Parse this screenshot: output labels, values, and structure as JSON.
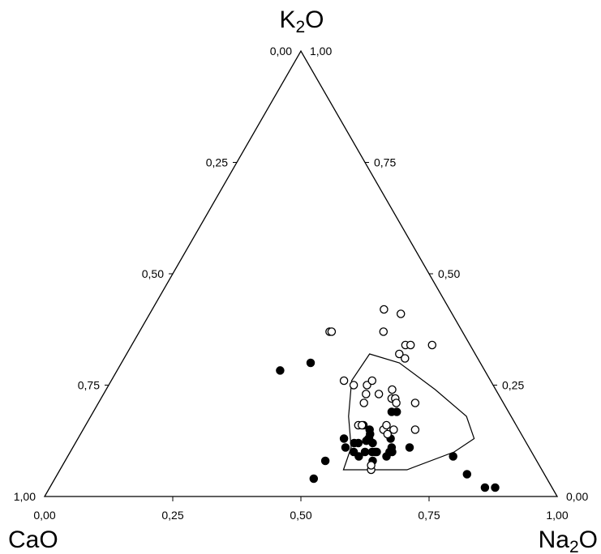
{
  "chart_data": {
    "type": "scatter",
    "plot_kind": "ternary",
    "title": "",
    "vertices": {
      "top": {
        "label": "K",
        "sub": "2",
        "tail": "O"
      },
      "left": {
        "label": "CaO",
        "sub": "",
        "tail": ""
      },
      "right": {
        "label": "Na",
        "sub": "2",
        "tail": "O"
      }
    },
    "component_order": [
      "CaO",
      "Na2O",
      "K2O"
    ],
    "tick_labels": {
      "bottom": [
        "0,00",
        "0,25",
        "0,50",
        "0,75",
        "1,00"
      ],
      "left": [
        "0,00",
        "0,25",
        "0,50",
        "0,75",
        "1,00"
      ],
      "right": [
        "1,00",
        "0,75",
        "0,50",
        "0,25",
        "0,00"
      ]
    },
    "grid": false,
    "legend": "none",
    "series": [
      {
        "marker": "filled-circle",
        "color": "#000000",
        "points": [
          {
            "CaO": 0.331,
            "Na2O": 0.369,
            "K2O": 0.3
          },
          {
            "CaO": 0.358,
            "Na2O": 0.532,
            "K2O": 0.11
          },
          {
            "CaO": 0.351,
            "Na2O": 0.519,
            "K2O": 0.13
          },
          {
            "CaO": 0.328,
            "Na2O": 0.552,
            "K2O": 0.12
          },
          {
            "CaO": 0.336,
            "Na2O": 0.544,
            "K2O": 0.12
          },
          {
            "CaO": 0.347,
            "Na2O": 0.553,
            "K2O": 0.1
          },
          {
            "CaO": 0.342,
            "Na2O": 0.568,
            "K2O": 0.09
          },
          {
            "CaO": 0.325,
            "Na2O": 0.575,
            "K2O": 0.1
          },
          {
            "CaO": 0.32,
            "Na2O": 0.6,
            "K2O": 0.08
          },
          {
            "CaO": 0.302,
            "Na2O": 0.598,
            "K2O": 0.1
          },
          {
            "CaO": 0.305,
            "Na2O": 0.595,
            "K2O": 0.1
          },
          {
            "CaO": 0.311,
            "Na2O": 0.589,
            "K2O": 0.1
          },
          {
            "CaO": 0.303,
            "Na2O": 0.567,
            "K2O": 0.13
          },
          {
            "CaO": 0.31,
            "Na2O": 0.565,
            "K2O": 0.125
          },
          {
            "CaO": 0.295,
            "Na2O": 0.565,
            "K2O": 0.14
          },
          {
            "CaO": 0.291,
            "Na2O": 0.559,
            "K2O": 0.15
          },
          {
            "CaO": 0.3,
            "Na2O": 0.58,
            "K2O": 0.12
          },
          {
            "CaO": 0.298,
            "Na2O": 0.542,
            "K2O": 0.16
          },
          {
            "CaO": 0.302,
            "Na2O": 0.568,
            "K2O": 0.13
          },
          {
            "CaO": 0.288,
            "Na2O": 0.622,
            "K2O": 0.09
          },
          {
            "CaO": 0.272,
            "Na2O": 0.628,
            "K2O": 0.1
          },
          {
            "CaO": 0.26,
            "Na2O": 0.61,
            "K2O": 0.13
          },
          {
            "CaO": 0.268,
            "Na2O": 0.622,
            "K2O": 0.11
          },
          {
            "CaO": 0.277,
            "Na2O": 0.623,
            "K2O": 0.1
          },
          {
            "CaO": 0.233,
            "Na2O": 0.657,
            "K2O": 0.11
          },
          {
            "CaO": 0.228,
            "Na2O": 0.582,
            "K2O": 0.19
          },
          {
            "CaO": 0.218,
            "Na2O": 0.592,
            "K2O": 0.19
          },
          {
            "CaO": 0.158,
            "Na2O": 0.752,
            "K2O": 0.09
          },
          {
            "CaO": 0.151,
            "Na2O": 0.799,
            "K2O": 0.05
          },
          {
            "CaO": 0.412,
            "Na2O": 0.507,
            "K2O": 0.08
          },
          {
            "CaO": 0.455,
            "Na2O": 0.505,
            "K2O": 0.04
          },
          {
            "CaO": 0.111,
            "Na2O": 0.869,
            "K2O": 0.02
          },
          {
            "CaO": 0.131,
            "Na2O": 0.849,
            "K2O": 0.02
          },
          {
            "CaO": 0.399,
            "Na2O": 0.318,
            "K2O": 0.283
          }
        ]
      },
      {
        "marker": "open-circle",
        "color": "#000000",
        "points": [
          {
            "CaO": 0.128,
            "Na2O": 0.452,
            "K2O": 0.42
          },
          {
            "CaO": 0.1,
            "Na2O": 0.49,
            "K2O": 0.41
          },
          {
            "CaO": 0.126,
            "Na2O": 0.534,
            "K2O": 0.34
          },
          {
            "CaO": 0.116,
            "Na2O": 0.544,
            "K2O": 0.34
          },
          {
            "CaO": 0.259,
            "Na2O": 0.371,
            "K2O": 0.37
          },
          {
            "CaO": 0.255,
            "Na2O": 0.375,
            "K2O": 0.37
          },
          {
            "CaO": 0.154,
            "Na2O": 0.476,
            "K2O": 0.37
          },
          {
            "CaO": 0.074,
            "Na2O": 0.586,
            "K2O": 0.34
          },
          {
            "CaO": 0.148,
            "Na2O": 0.532,
            "K2O": 0.32
          },
          {
            "CaO": 0.142,
            "Na2O": 0.548,
            "K2O": 0.31
          },
          {
            "CaO": 0.246,
            "Na2O": 0.504,
            "K2O": 0.25
          },
          {
            "CaO": 0.272,
            "Na2O": 0.478,
            "K2O": 0.25
          },
          {
            "CaO": 0.286,
            "Na2O": 0.454,
            "K2O": 0.26
          },
          {
            "CaO": 0.231,
            "Na2O": 0.509,
            "K2O": 0.26
          },
          {
            "CaO": 0.258,
            "Na2O": 0.512,
            "K2O": 0.23
          },
          {
            "CaO": 0.233,
            "Na2O": 0.537,
            "K2O": 0.23
          },
          {
            "CaO": 0.213,
            "Na2O": 0.567,
            "K2O": 0.22
          },
          {
            "CaO": 0.206,
            "Na2O": 0.574,
            "K2O": 0.22
          },
          {
            "CaO": 0.209,
            "Na2O": 0.581,
            "K2O": 0.21
          },
          {
            "CaO": 0.172,
            "Na2O": 0.618,
            "K2O": 0.21
          },
          {
            "CaO": 0.308,
            "Na2O": 0.532,
            "K2O": 0.16
          },
          {
            "CaO": 0.301,
            "Na2O": 0.539,
            "K2O": 0.16
          },
          {
            "CaO": 0.264,
            "Na2O": 0.586,
            "K2O": 0.15
          },
          {
            "CaO": 0.253,
            "Na2O": 0.587,
            "K2O": 0.16
          },
          {
            "CaO": 0.261,
            "Na2O": 0.599,
            "K2O": 0.14
          },
          {
            "CaO": 0.244,
            "Na2O": 0.606,
            "K2O": 0.15
          },
          {
            "CaO": 0.202,
            "Na2O": 0.648,
            "K2O": 0.15
          },
          {
            "CaO": 0.202,
            "Na2O": 0.558,
            "K2O": 0.24
          },
          {
            "CaO": 0.272,
            "Na2O": 0.518,
            "K2O": 0.21
          },
          {
            "CaO": 0.333,
            "Na2O": 0.607,
            "K2O": 0.06
          },
          {
            "CaO": 0.328,
            "Na2O": 0.602,
            "K2O": 0.07
          }
        ]
      }
    ],
    "outline": [
      {
        "CaO": 0.387,
        "Na2O": 0.553,
        "K2O": 0.06
      },
      {
        "CaO": 0.347,
        "Na2O": 0.543,
        "K2O": 0.11
      },
      {
        "CaO": 0.317,
        "Na2O": 0.503,
        "K2O": 0.18
      },
      {
        "CaO": 0.271,
        "Na2O": 0.469,
        "K2O": 0.26
      },
      {
        "CaO": 0.206,
        "Na2O": 0.474,
        "K2O": 0.32
      },
      {
        "CaO": 0.158,
        "Na2O": 0.542,
        "K2O": 0.3
      },
      {
        "CaO": 0.118,
        "Na2O": 0.642,
        "K2O": 0.24
      },
      {
        "CaO": 0.087,
        "Na2O": 0.733,
        "K2O": 0.18
      },
      {
        "CaO": 0.097,
        "Na2O": 0.773,
        "K2O": 0.13
      },
      {
        "CaO": 0.151,
        "Na2O": 0.749,
        "K2O": 0.1
      },
      {
        "CaO": 0.263,
        "Na2O": 0.677,
        "K2O": 0.06
      },
      {
        "CaO": 0.342,
        "Na2O": 0.598,
        "K2O": 0.06
      }
    ]
  }
}
